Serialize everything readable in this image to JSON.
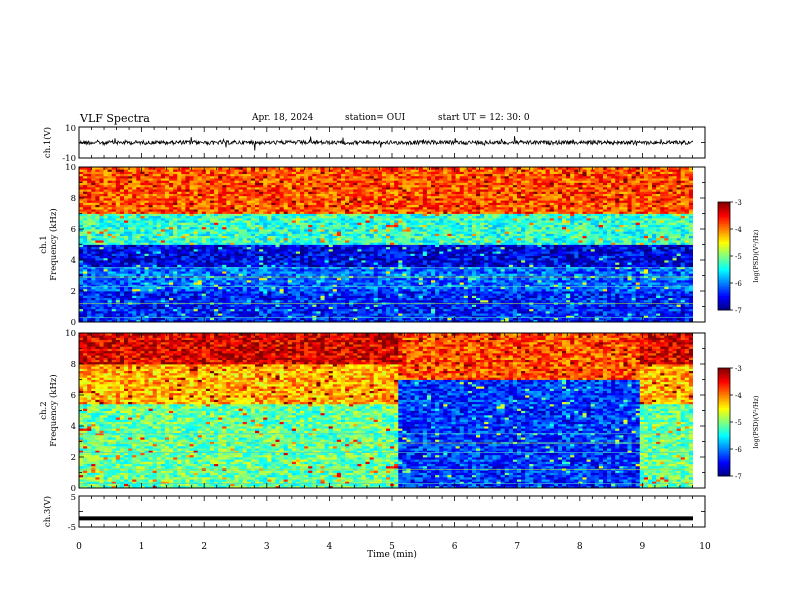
{
  "header": {
    "title": "VLF Spectra",
    "date": "Apr. 18, 2024",
    "station": "station= OUI",
    "start": "start  UT  =   12: 30: 0"
  },
  "chart_data": [
    {
      "type": "line",
      "panel": "ch1-waveform",
      "ylabel": "ch.1(V)",
      "ylim": [
        -10,
        10
      ],
      "yticks": [
        "10",
        "-10"
      ],
      "x_range_min": [
        0,
        9.83
      ],
      "level": 0,
      "description_color": "#000000"
    },
    {
      "type": "heatmap",
      "panel": "ch1-spectrogram",
      "ylabel": [
        "ch.1",
        "Frequency (kHz)"
      ],
      "ylim": [
        0,
        10
      ],
      "yticks": [
        "0",
        "2",
        "4",
        "6",
        "8",
        "10"
      ],
      "x_range_min": [
        0,
        9.83
      ],
      "colorbar": {
        "label": "log(PSD)(V²/Hz)",
        "range": [
          -7,
          -3
        ],
        "ticks": [
          "-3",
          "-4",
          "-5",
          "-6",
          "-7"
        ]
      },
      "bands_khz": [
        {
          "from": 7.0,
          "to": 10.0,
          "level": -3.8
        },
        {
          "from": 5.0,
          "to": 7.0,
          "level": -5.3
        },
        {
          "from": 3.6,
          "to": 5.0,
          "level": -6.6
        },
        {
          "from": 2.0,
          "to": 3.6,
          "level": -6.1
        },
        {
          "from": 0.0,
          "to": 2.0,
          "level": -6.4
        }
      ]
    },
    {
      "type": "heatmap",
      "panel": "ch2-spectrogram",
      "ylabel": [
        "ch.2",
        "Frequency (kHz)"
      ],
      "ylim": [
        0,
        10
      ],
      "yticks": [
        "0",
        "2",
        "4",
        "6",
        "8",
        "10"
      ],
      "x_range_min": [
        0,
        9.83
      ],
      "colorbar": {
        "label": "log(PSD)(V²/Hz)",
        "range": [
          -7,
          -3
        ],
        "ticks": [
          "-3",
          "-4",
          "-5",
          "-6",
          "-7"
        ]
      },
      "regime_change_min": [
        5.1,
        9.0
      ],
      "bands_khz_before": [
        {
          "from": 8.0,
          "to": 10.0,
          "level": -3.4
        },
        {
          "from": 5.5,
          "to": 8.0,
          "level": -4.2
        },
        {
          "from": 0.0,
          "to": 5.5,
          "level": -5.1
        }
      ],
      "bands_khz_during": [
        {
          "from": 7.0,
          "to": 10.0,
          "level": -3.8
        },
        {
          "from": 0.0,
          "to": 7.0,
          "level": -6.3
        }
      ]
    },
    {
      "type": "line",
      "panel": "ch3-waveform",
      "ylabel": "ch.3(V)",
      "ylim": [
        -5,
        5
      ],
      "yticks": [
        "5",
        "-5"
      ],
      "x_range_min": [
        0,
        9.83
      ],
      "level": -2.2
    }
  ],
  "xaxis": {
    "label": "Time (min)",
    "xlim": [
      0,
      10
    ],
    "ticks": [
      "0",
      "1",
      "2",
      "3",
      "4",
      "5",
      "6",
      "7",
      "8",
      "9",
      "10"
    ]
  }
}
